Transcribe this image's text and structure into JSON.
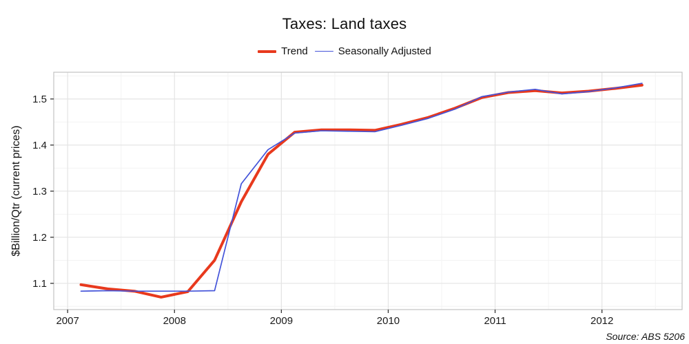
{
  "chart_data": {
    "type": "line",
    "title": "Taxes: Land taxes",
    "ylabel": "$Billion/Qtr (current prices)",
    "xlabel": "",
    "source": "Source: ABS 5206",
    "grid": true,
    "legend_position": "top",
    "xlim": [
      2006.87,
      2012.75
    ],
    "ylim": [
      1.043,
      1.558
    ],
    "x_ticks": [
      2007,
      2008,
      2009,
      2010,
      2011,
      2012
    ],
    "x_minor_ticks": [
      2007.5,
      2008.5,
      2009.5,
      2010.5,
      2011.5,
      2012.5
    ],
    "y_ticks": [
      1.1,
      1.2,
      1.3,
      1.4,
      1.5
    ],
    "y_minor_ticks": [
      1.05,
      1.15,
      1.25,
      1.35,
      1.45,
      1.55
    ],
    "x_quarters": [
      "2007 Q1",
      "2007 Q2",
      "2007 Q3",
      "2007 Q4",
      "2008 Q1",
      "2008 Q2",
      "2008 Q3",
      "2008 Q4",
      "2009 Q1",
      "2009 Q2",
      "2009 Q3",
      "2009 Q4",
      "2010 Q1",
      "2010 Q2",
      "2010 Q3",
      "2010 Q4",
      "2011 Q1",
      "2011 Q2",
      "2011 Q3",
      "2011 Q4",
      "2012 Q1",
      "2012 Q2"
    ],
    "x": [
      2007.125,
      2007.375,
      2007.625,
      2007.875,
      2008.125,
      2008.375,
      2008.625,
      2008.875,
      2009.125,
      2009.375,
      2009.625,
      2009.875,
      2010.125,
      2010.375,
      2010.625,
      2010.875,
      2011.125,
      2011.375,
      2011.625,
      2011.875,
      2012.125,
      2012.375
    ],
    "series": [
      {
        "name": "Trend",
        "color": "#e8391d",
        "stroke_width": 4,
        "values": [
          1.097,
          1.088,
          1.083,
          1.07,
          1.082,
          1.15,
          1.277,
          1.38,
          1.428,
          1.433,
          1.433,
          1.432,
          1.445,
          1.46,
          1.48,
          1.503,
          1.514,
          1.518,
          1.513,
          1.517,
          1.523,
          1.53
        ]
      },
      {
        "name": "Seasonally Adjusted",
        "color": "#4353d9",
        "stroke_width": 1.7,
        "values": [
          1.083,
          1.084,
          1.083,
          1.083,
          1.083,
          1.084,
          1.316,
          1.39,
          1.426,
          1.431,
          1.43,
          1.429,
          1.443,
          1.458,
          1.478,
          1.505,
          1.515,
          1.521,
          1.511,
          1.516,
          1.524,
          1.534
        ]
      }
    ],
    "colors": {
      "panel_border": "#c3c3c3",
      "grid_major": "#e4e4e4",
      "grid_minor": "#f3f3f3",
      "tick_mark": "#333333",
      "tick_label": "#1a1a1a"
    }
  }
}
